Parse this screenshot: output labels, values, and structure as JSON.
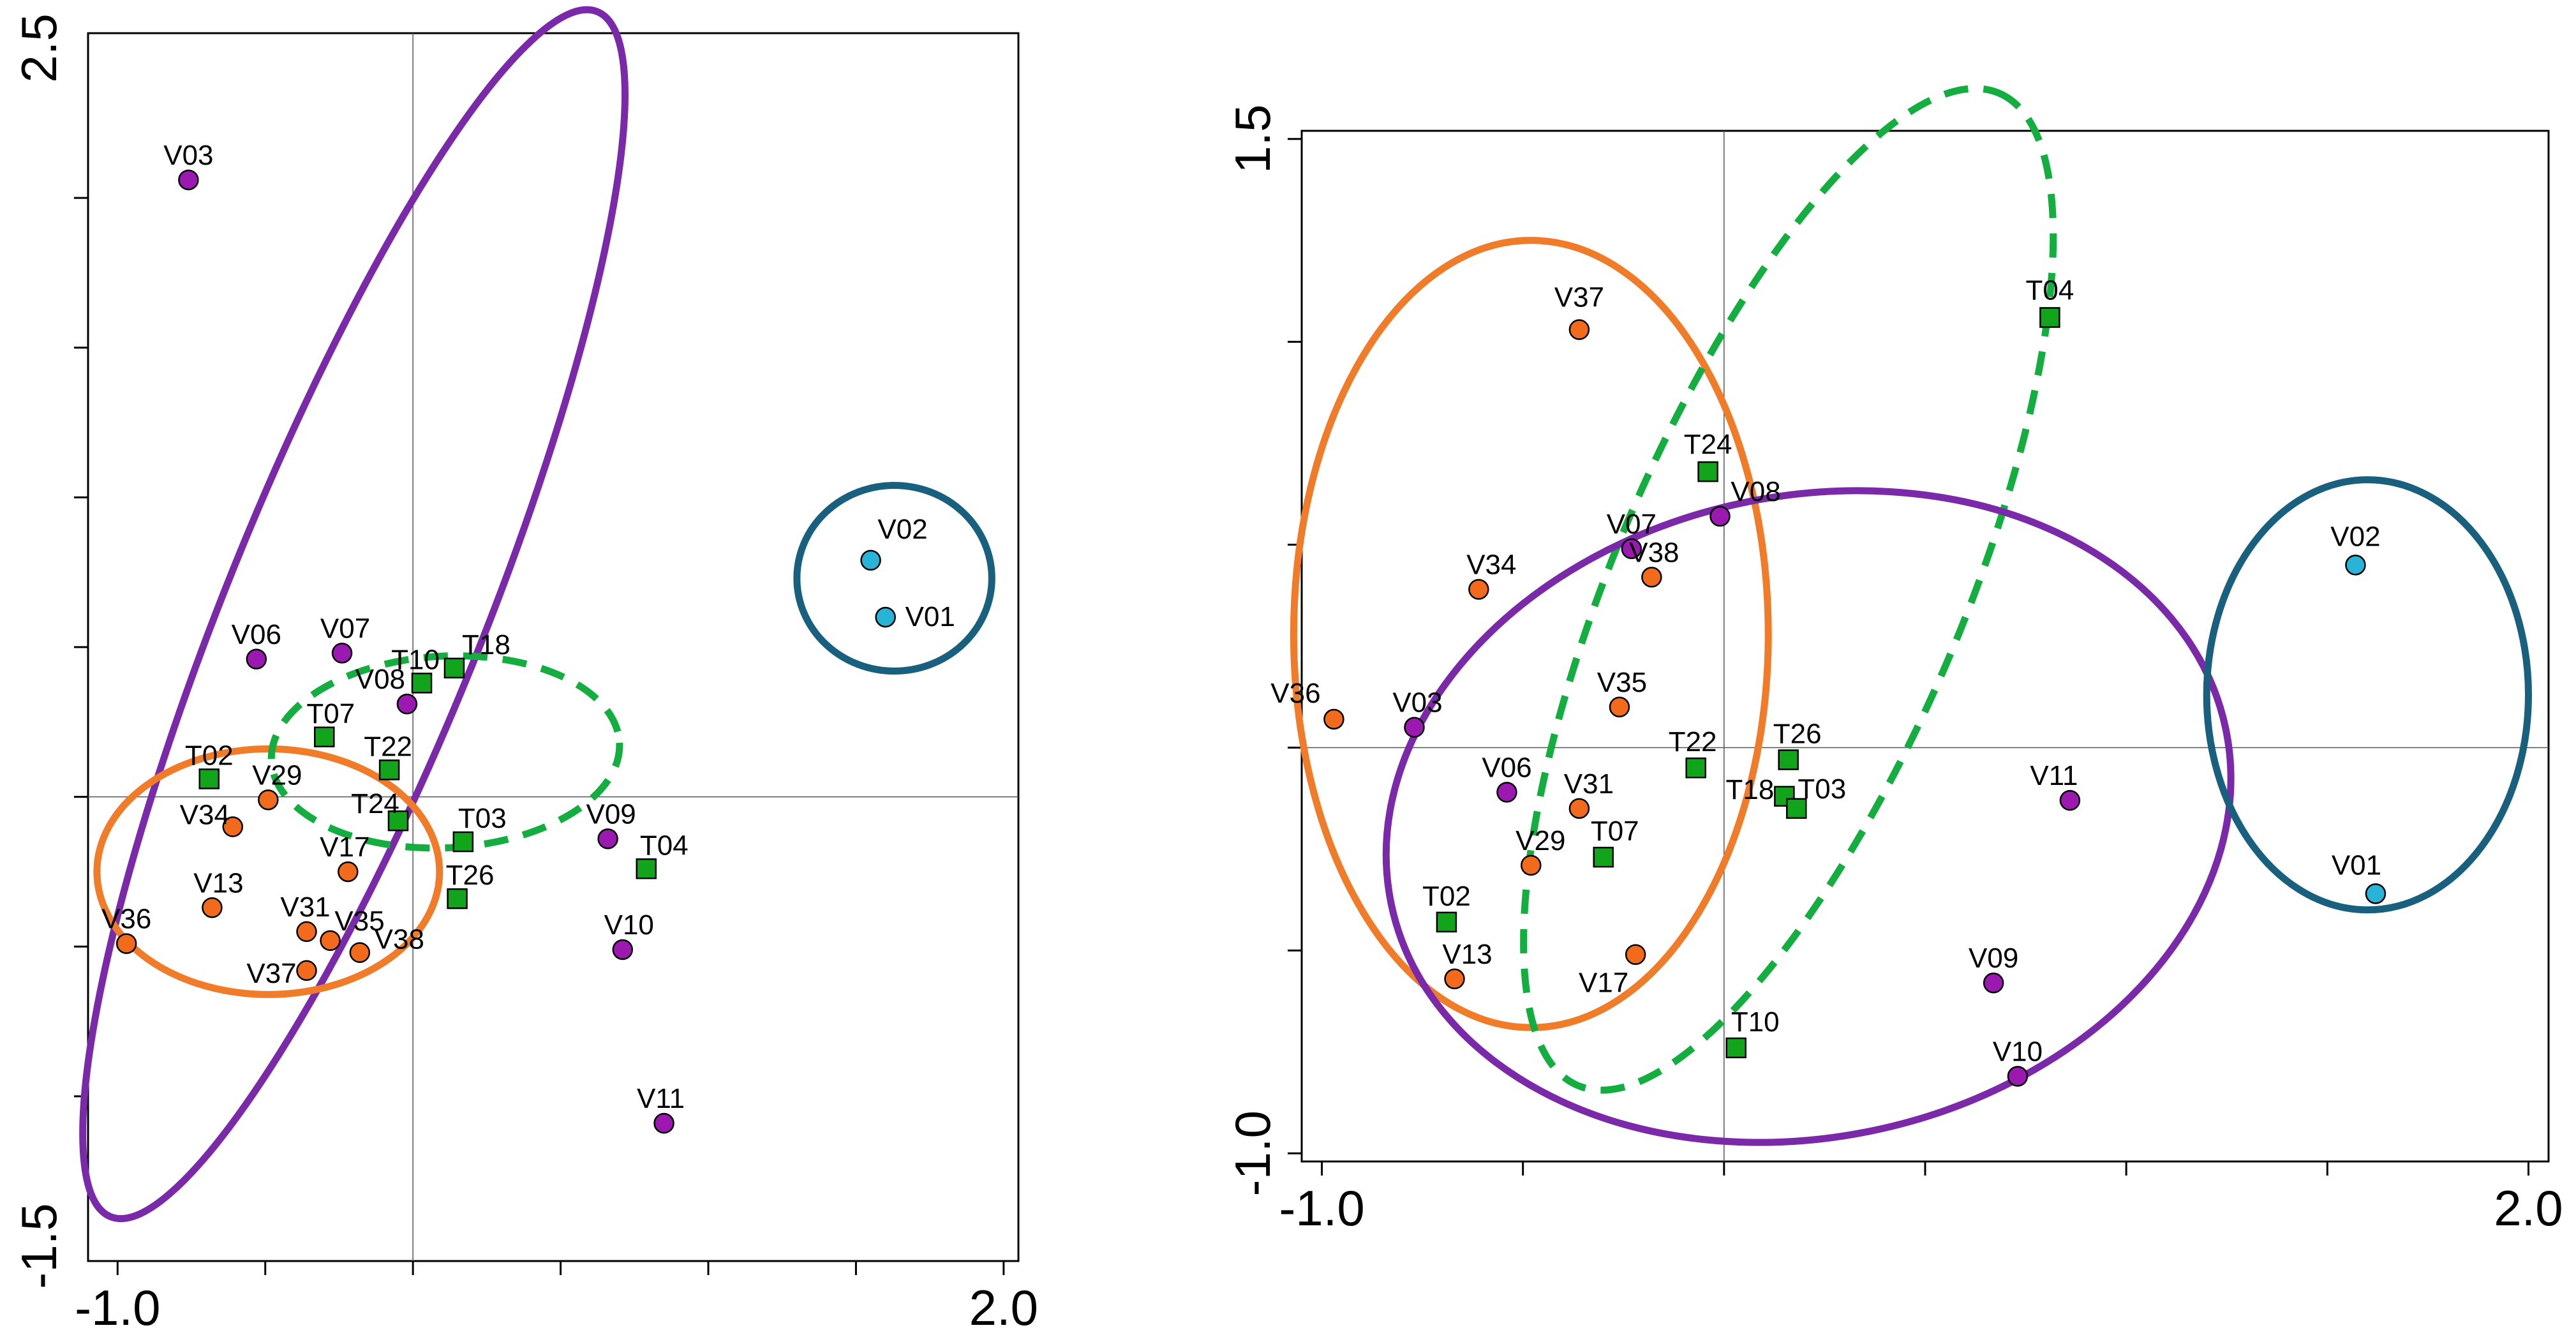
{
  "chart_data": [
    {
      "type": "scatter",
      "title": "",
      "xlabel": "",
      "ylabel": "",
      "xlim": [
        -1.1,
        2.05
      ],
      "ylim": [
        -1.55,
        2.55
      ],
      "x_ticks": [
        -1.0,
        -0.5,
        0.0,
        0.5,
        1.0,
        1.5,
        2.0
      ],
      "y_ticks": [
        -1.0,
        -0.5,
        0.0,
        0.5,
        1.0,
        1.5,
        2.0
      ],
      "x_tick_labels": [
        {
          "value": -1.0,
          "label": "-1.0"
        },
        {
          "value": 2.0,
          "label": "2.0"
        }
      ],
      "y_tick_labels": [
        {
          "value": 2.5,
          "label": "2.5"
        },
        {
          "value": -1.5,
          "label": "-1.5"
        }
      ],
      "grid": false,
      "zero_lines": true,
      "series": [
        {
          "color": "#9b19b0",
          "marker": "circle",
          "points": [
            {
              "label": "V03",
              "x": -0.76,
              "y": 2.06
            },
            {
              "label": "V06",
              "x": -0.53,
              "y": 0.46
            },
            {
              "label": "V07",
              "x": -0.24,
              "y": 0.48
            },
            {
              "label": "V08",
              "x": -0.02,
              "y": 0.31
            },
            {
              "label": "V09",
              "x": 0.66,
              "y": -0.14
            },
            {
              "label": "V10",
              "x": 0.71,
              "y": -0.51
            },
            {
              "label": "V11",
              "x": 0.85,
              "y": -1.09
            }
          ]
        },
        {
          "color": "#f26b1d",
          "marker": "circle",
          "points": [
            {
              "label": "V29",
              "x": -0.49,
              "y": -0.01
            },
            {
              "label": "V34",
              "x": -0.61,
              "y": -0.1
            },
            {
              "label": "V13",
              "x": -0.68,
              "y": -0.37
            },
            {
              "label": "V36",
              "x": -0.97,
              "y": -0.49
            },
            {
              "label": "V17",
              "x": -0.22,
              "y": -0.25
            },
            {
              "label": "V31",
              "x": -0.36,
              "y": -0.45
            },
            {
              "label": "V35",
              "x": -0.28,
              "y": -0.48
            },
            {
              "label": "V37",
              "x": -0.36,
              "y": -0.58
            },
            {
              "label": "V38",
              "x": -0.18,
              "y": -0.52
            }
          ]
        },
        {
          "color": "#12a51c",
          "marker": "square",
          "points": [
            {
              "label": "T02",
              "x": -0.69,
              "y": 0.06
            },
            {
              "label": "T07",
              "x": -0.3,
              "y": 0.2
            },
            {
              "label": "T22",
              "x": -0.08,
              "y": 0.09
            },
            {
              "label": "T24",
              "x": -0.05,
              "y": -0.08
            },
            {
              "label": "T10",
              "x": 0.03,
              "y": 0.38
            },
            {
              "label": "T18",
              "x": 0.14,
              "y": 0.43
            },
            {
              "label": "T03",
              "x": 0.17,
              "y": -0.15
            },
            {
              "label": "T26",
              "x": 0.15,
              "y": -0.34
            },
            {
              "label": "T04",
              "x": 0.79,
              "y": -0.24
            }
          ]
        },
        {
          "color": "#29b3d6",
          "marker": "circle",
          "points": [
            {
              "label": "V02",
              "x": 1.55,
              "y": 0.79
            },
            {
              "label": "V01",
              "x": 1.6,
              "y": 0.6
            }
          ]
        }
      ],
      "ellipses": [
        {
          "color": "#7a2aa8",
          "style": "solid",
          "cx": -0.2,
          "cy": 0.61,
          "rx": 2.2,
          "ry": 0.43,
          "angle_deg": -68
        },
        {
          "color": "#f07c2a",
          "style": "solid",
          "cx": -0.49,
          "cy": -0.25,
          "rx": 0.58,
          "ry": 0.41,
          "angle_deg": 0
        },
        {
          "color": "#14ae40",
          "style": "dashed",
          "cx": 0.11,
          "cy": 0.15,
          "rx": 0.59,
          "ry": 0.32,
          "angle_deg": -3
        },
        {
          "color": "#19607e",
          "style": "solid",
          "cx": 1.63,
          "cy": 0.73,
          "rx": 0.33,
          "ry": 0.31,
          "angle_deg": 0
        }
      ]
    },
    {
      "type": "scatter",
      "title": "",
      "xlabel": "",
      "ylabel": "",
      "xlim": [
        -1.05,
        2.05
      ],
      "ylim": [
        -1.02,
        1.52
      ],
      "x_ticks": [
        -1.0,
        -0.5,
        0.0,
        0.5,
        1.0,
        1.5,
        2.0
      ],
      "y_ticks": [
        -1.0,
        -0.5,
        0.0,
        0.5,
        1.0,
        1.5
      ],
      "x_tick_labels": [
        {
          "value": -1.0,
          "label": "-1.0"
        },
        {
          "value": 2.0,
          "label": "2.0"
        }
      ],
      "y_tick_labels": [
        {
          "value": 1.5,
          "label": "1.5"
        },
        {
          "value": -1.0,
          "label": "-1.0"
        }
      ],
      "grid": false,
      "zero_lines": true,
      "series": [
        {
          "color": "#9b19b0",
          "marker": "circle",
          "points": [
            {
              "label": "V08",
              "x": -0.01,
              "y": 0.57
            },
            {
              "label": "V07",
              "x": -0.23,
              "y": 0.49
            },
            {
              "label": "V03",
              "x": -0.77,
              "y": 0.05
            },
            {
              "label": "V06",
              "x": -0.54,
              "y": -0.11
            },
            {
              "label": "V11",
              "x": 0.86,
              "y": -0.13
            },
            {
              "label": "V09",
              "x": 0.67,
              "y": -0.58
            },
            {
              "label": "V10",
              "x": 0.73,
              "y": -0.81
            }
          ]
        },
        {
          "color": "#f26b1d",
          "marker": "circle",
          "points": [
            {
              "label": "V37",
              "x": -0.36,
              "y": 1.03
            },
            {
              "label": "V34",
              "x": -0.61,
              "y": 0.39
            },
            {
              "label": "V38",
              "x": -0.18,
              "y": 0.42
            },
            {
              "label": "V36",
              "x": -0.97,
              "y": 0.07
            },
            {
              "label": "V35",
              "x": -0.26,
              "y": 0.1
            },
            {
              "label": "V31",
              "x": -0.36,
              "y": -0.15
            },
            {
              "label": "V29",
              "x": -0.48,
              "y": -0.29
            },
            {
              "label": "V13",
              "x": -0.67,
              "y": -0.57
            },
            {
              "label": "V17",
              "x": -0.22,
              "y": -0.51
            }
          ]
        },
        {
          "color": "#12a51c",
          "marker": "square",
          "points": [
            {
              "label": "T04",
              "x": 0.81,
              "y": 1.06
            },
            {
              "label": "T24",
              "x": -0.04,
              "y": 0.68
            },
            {
              "label": "T22",
              "x": -0.07,
              "y": -0.05
            },
            {
              "label": "T26",
              "x": 0.16,
              "y": -0.03
            },
            {
              "label": "T18",
              "x": 0.15,
              "y": -0.12
            },
            {
              "label": "T03",
              "x": 0.18,
              "y": -0.15
            },
            {
              "label": "T07",
              "x": -0.3,
              "y": -0.27
            },
            {
              "label": "T02",
              "x": -0.69,
              "y": -0.43
            },
            {
              "label": "T10",
              "x": 0.03,
              "y": -0.74
            }
          ]
        },
        {
          "color": "#29b3d6",
          "marker": "circle",
          "points": [
            {
              "label": "V02",
              "x": 1.57,
              "y": 0.45
            },
            {
              "label": "V01",
              "x": 1.62,
              "y": -0.36
            }
          ]
        }
      ],
      "ellipses": [
        {
          "color": "#f07c2a",
          "style": "solid",
          "cx": -0.48,
          "cy": 0.28,
          "rx": 0.59,
          "ry": 0.97,
          "angle_deg": 0
        },
        {
          "color": "#14ae40",
          "style": "dashed",
          "cx": 0.16,
          "cy": 0.39,
          "rx": 1.34,
          "ry": 0.43,
          "angle_deg": -67
        },
        {
          "color": "#7a2aa8",
          "style": "solid",
          "cx": 0.21,
          "cy": -0.17,
          "rx": 1.06,
          "ry": 0.79,
          "angle_deg": -12
        },
        {
          "color": "#19607e",
          "style": "solid",
          "cx": 1.6,
          "cy": 0.13,
          "rx": 0.4,
          "ry": 0.53,
          "angle_deg": 0
        }
      ]
    }
  ]
}
